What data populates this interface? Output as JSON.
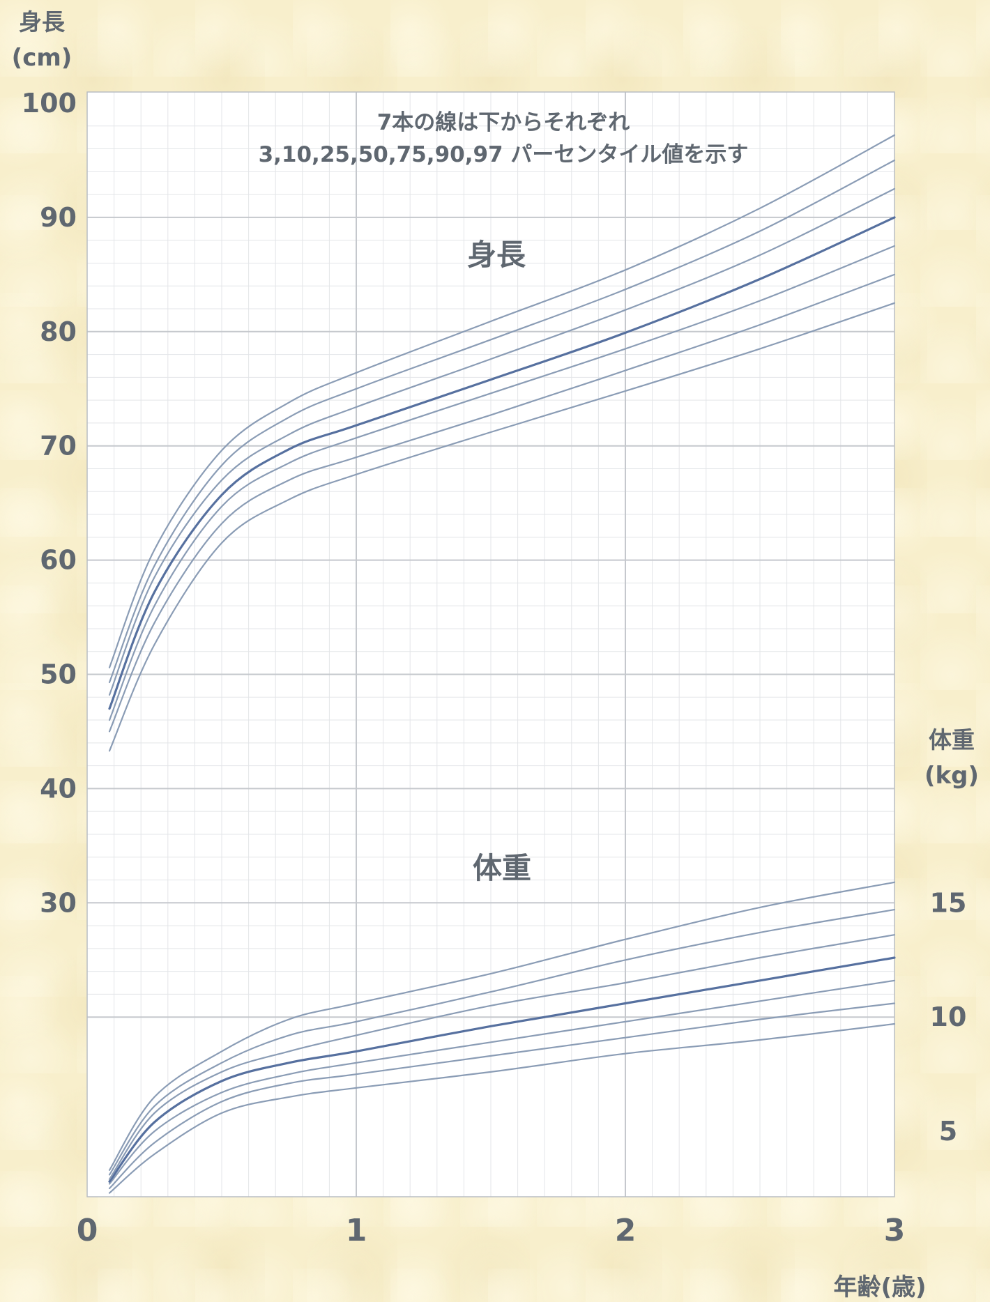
{
  "chart_data": {
    "type": "line",
    "note_lines": [
      "7本の線は下からそれぞれ",
      "3,10,25,50,75,90,97 パーセンタイル値を示す"
    ],
    "percentiles": [
      3,
      10,
      25,
      50,
      75,
      90,
      97
    ],
    "x_axis": {
      "label": "年齢(歳)",
      "range": [
        0,
        3
      ],
      "ticks": [
        0,
        1,
        2,
        3
      ],
      "tick_labels": [
        "0",
        "1",
        "2",
        "3"
      ]
    },
    "y_axis_left": {
      "label_lines": [
        "身長",
        "(cm)"
      ],
      "range": [
        0,
        100
      ],
      "ticks": [
        30,
        40,
        50,
        60,
        70,
        80,
        90,
        100
      ],
      "tick_labels": [
        "30",
        "40",
        "50",
        "60",
        "70",
        "80",
        "90",
        "100"
      ]
    },
    "y_axis_right": {
      "label_lines": [
        "体重",
        "(kg)"
      ],
      "range": [
        0,
        50
      ],
      "ticks": [
        5,
        10,
        15
      ],
      "tick_labels": [
        "5",
        "10",
        "15"
      ]
    },
    "grid": true,
    "x": [
      0.083,
      0.25,
      0.5,
      0.75,
      1,
      1.5,
      2,
      2.5,
      3
    ],
    "height_series": {
      "label": "身長",
      "values": [
        [
          43.3,
          52.6,
          61.5,
          65.3,
          67.5,
          71.2,
          74.8,
          78.5,
          82.5
        ],
        [
          45.0,
          54.5,
          63.2,
          67.0,
          69.0,
          72.7,
          76.6,
          80.6,
          85.0
        ],
        [
          46.0,
          56.0,
          64.7,
          68.5,
          70.7,
          74.6,
          78.5,
          82.7,
          87.5
        ],
        [
          47.0,
          57.2,
          65.7,
          69.7,
          71.8,
          75.8,
          79.9,
          84.6,
          90.0
        ],
        [
          48.2,
          58.5,
          67.0,
          71.0,
          73.4,
          77.6,
          81.9,
          86.7,
          92.5
        ],
        [
          49.3,
          59.5,
          68.3,
          72.5,
          75.0,
          79.3,
          83.7,
          88.8,
          95.0
        ],
        [
          50.6,
          60.9,
          69.6,
          73.8,
          76.4,
          80.9,
          85.4,
          90.8,
          97.2
        ]
      ]
    },
    "weight_series": {
      "label": "体重",
      "values": [
        [
          2.3,
          4.0,
          5.8,
          6.5,
          6.9,
          7.6,
          8.4,
          9.0,
          9.7
        ],
        [
          2.5,
          4.5,
          6.3,
          7.1,
          7.5,
          8.3,
          9.1,
          9.9,
          10.6
        ],
        [
          2.7,
          5.0,
          6.7,
          7.5,
          8.0,
          8.9,
          9.8,
          10.7,
          11.6
        ],
        [
          2.8,
          5.4,
          7.2,
          8.0,
          8.5,
          9.6,
          10.6,
          11.6,
          12.6
        ],
        [
          2.9,
          5.8,
          7.6,
          8.5,
          9.2,
          10.5,
          11.5,
          12.6,
          13.6
        ],
        [
          3.1,
          6.1,
          8.0,
          9.2,
          9.8,
          11.1,
          12.5,
          13.7,
          14.7
        ],
        [
          3.3,
          6.5,
          8.5,
          9.9,
          10.6,
          11.9,
          13.4,
          14.8,
          15.9
        ]
      ]
    },
    "colors": {
      "line": "#8a9cb5",
      "median_line": "#56709f",
      "grid_major": "#c5c8cd",
      "grid_minor": "#e3e5e8",
      "plot_bg": "#ffffff",
      "text": "#5f6770"
    }
  }
}
